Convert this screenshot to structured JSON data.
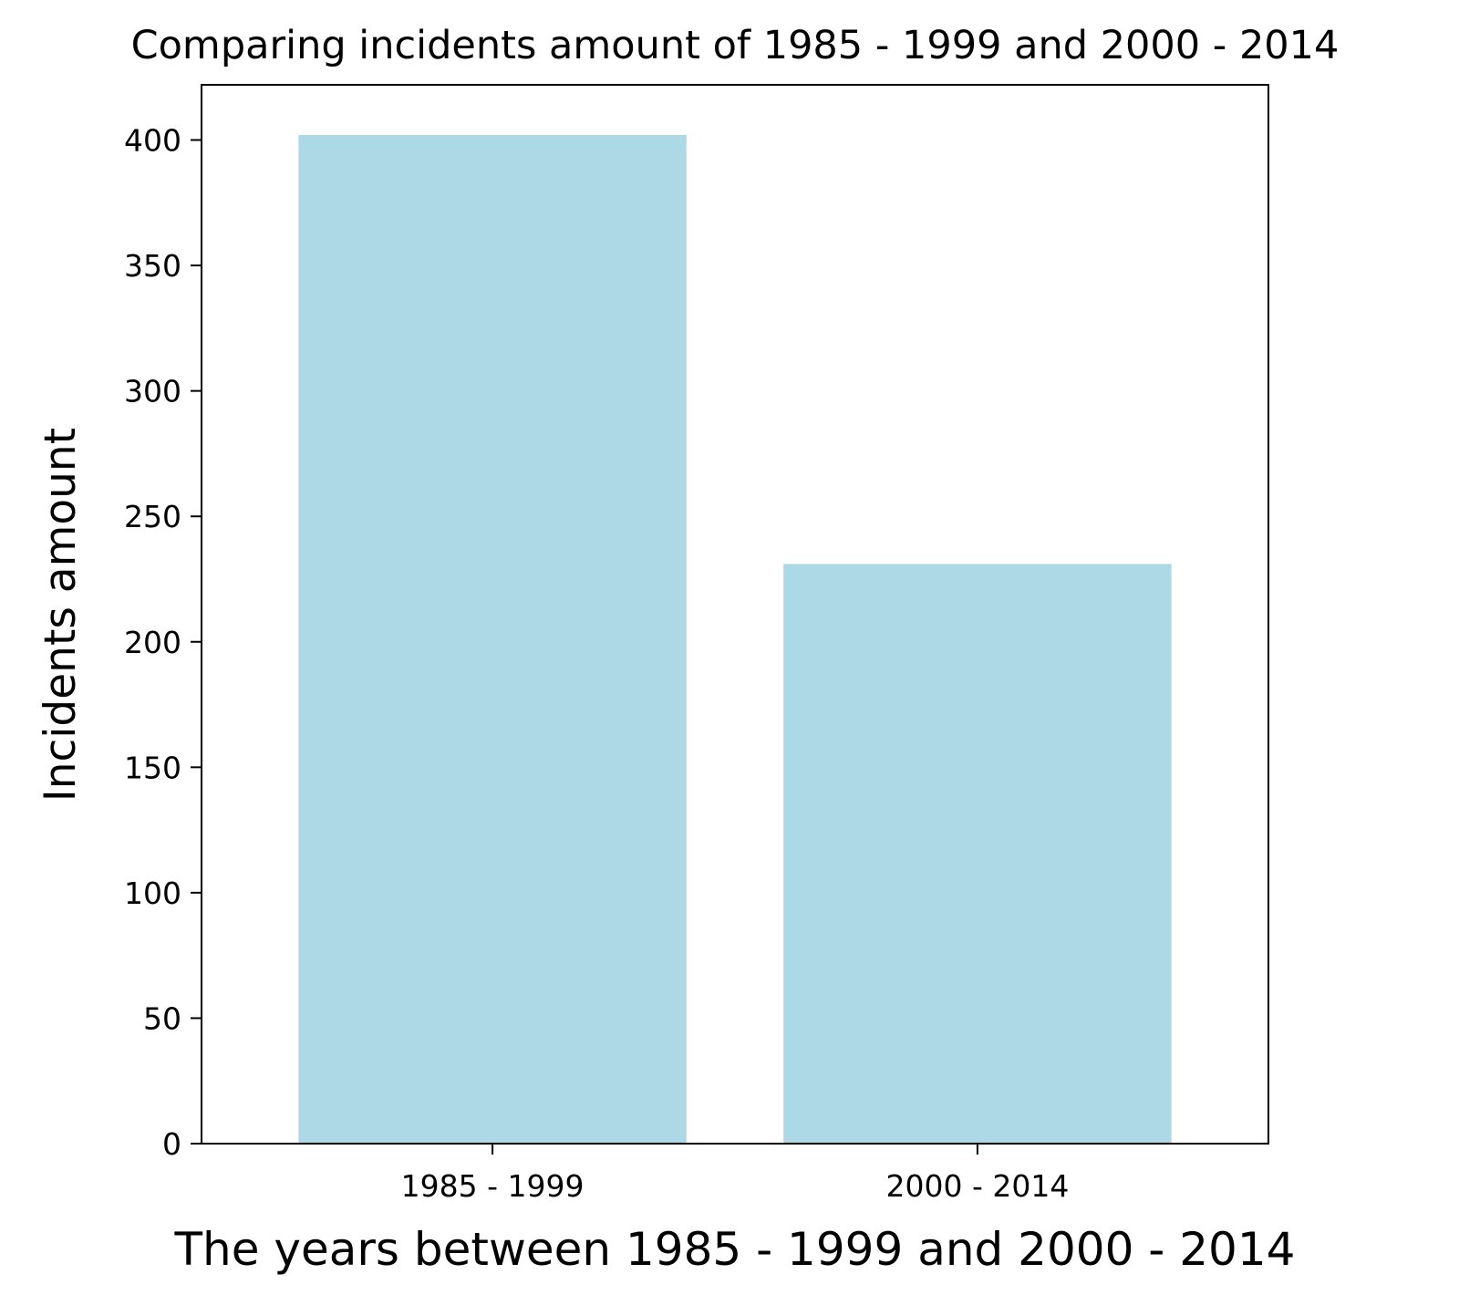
{
  "chart_data": {
    "type": "bar",
    "title": "Comparing incidents amount of 1985 - 1999 and 2000 - 2014",
    "xlabel": "The years between 1985 - 1999 and 2000 - 2014",
    "ylabel": "Incidents amount",
    "categories": [
      "1985 - 1999",
      "2000 - 2014"
    ],
    "values": [
      402,
      231
    ],
    "ylim": [
      0,
      422
    ],
    "yticks": [
      0,
      50,
      100,
      150,
      200,
      250,
      300,
      350,
      400
    ],
    "grid": false,
    "legend": "none",
    "colors": {
      "bar": "#add8e6",
      "axis": "#000000",
      "background": "#ffffff"
    }
  }
}
